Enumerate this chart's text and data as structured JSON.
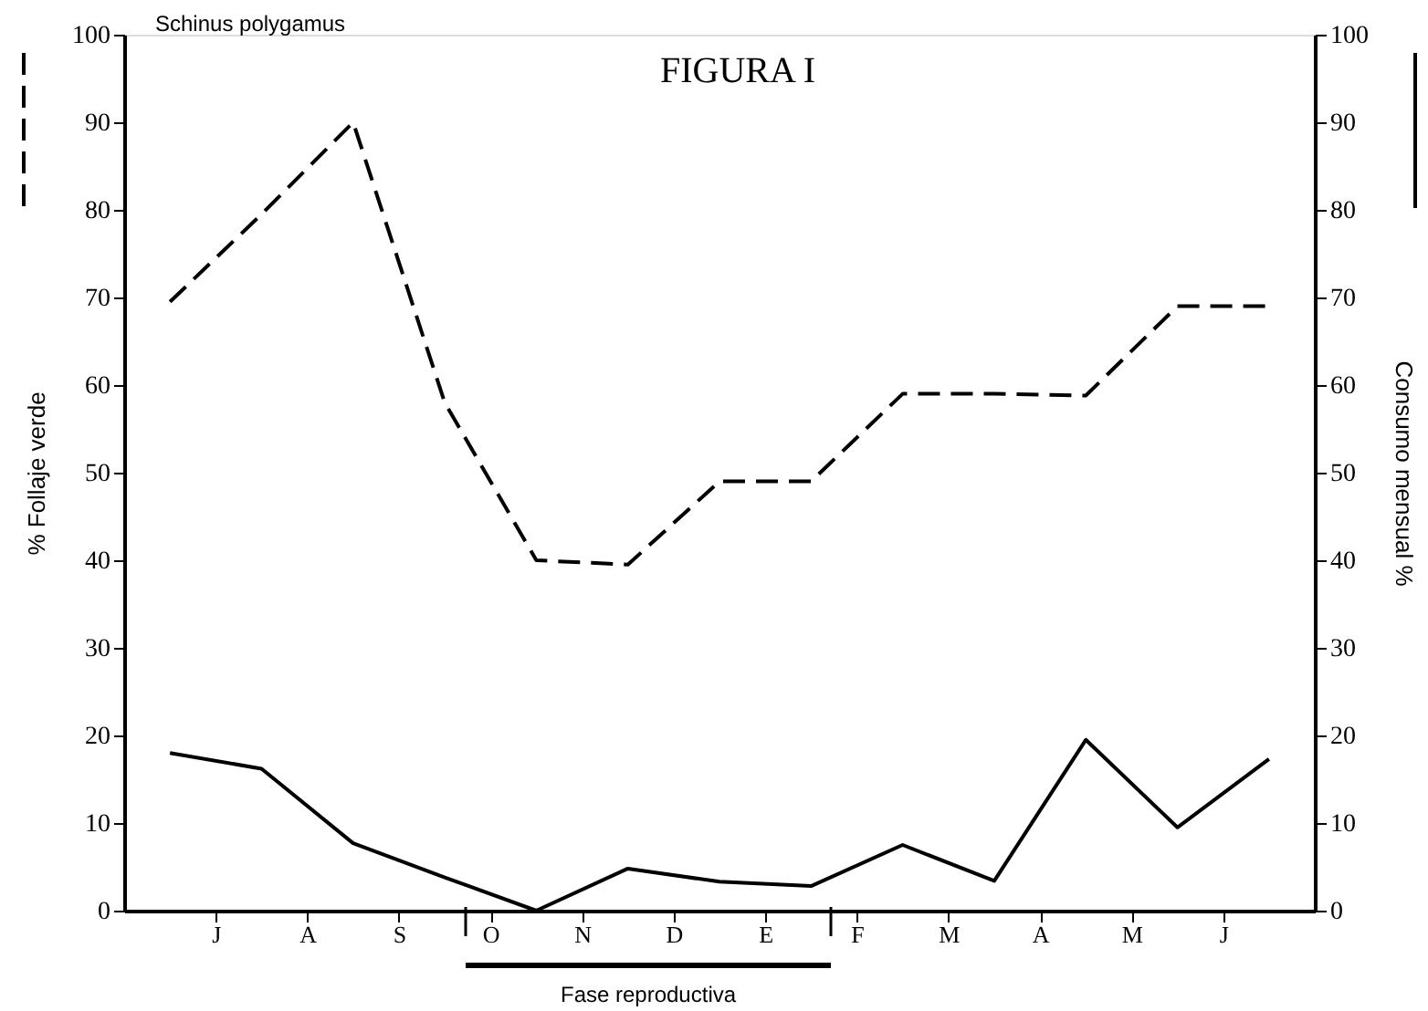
{
  "chart_data": {
    "type": "line",
    "title": "FIGURA I",
    "ylabel": "% Follaje verde",
    "y2label": "Consumo mensual %",
    "annotations": [
      "Schinus polygamus",
      "Fase reproductiva"
    ],
    "categories": [
      null,
      "J",
      null,
      "A",
      null,
      "S",
      null,
      "O",
      null,
      "N",
      null,
      "D",
      null,
      "E",
      null,
      "F",
      null,
      "M",
      null,
      "A",
      null,
      "M",
      null,
      "J",
      null
    ],
    "series": [
      {
        "color": "#000000",
        "line_style": "dashed",
        "axis": "y",
        "values": [
          69.5,
          null,
          79.5,
          null,
          90,
          null,
          58,
          null,
          40,
          null,
          39.5,
          null,
          49,
          null,
          49,
          null,
          59,
          null,
          59,
          null,
          58.8,
          null,
          69,
          null,
          69
        ]
      },
      {
        "color": "#000000",
        "line_style": "solid",
        "axis": "y2",
        "values": [
          18,
          null,
          16.2,
          null,
          7.7,
          null,
          3.8,
          null,
          0,
          null,
          4.8,
          null,
          3.3,
          null,
          2.8,
          null,
          7.5,
          null,
          3.4,
          null,
          19.5,
          null,
          9.5,
          null,
          17.3
        ]
      }
    ],
    "ylim": [
      0,
      100
    ],
    "yticks": [
      0,
      10,
      20,
      30,
      40,
      50,
      60,
      70,
      80,
      90,
      100
    ],
    "y2lim": [
      0,
      100
    ],
    "y2ticks": [
      0,
      10,
      20,
      30,
      40,
      50,
      60,
      70,
      80,
      90,
      100
    ],
    "grid": false,
    "legend": false,
    "marker": "none"
  }
}
